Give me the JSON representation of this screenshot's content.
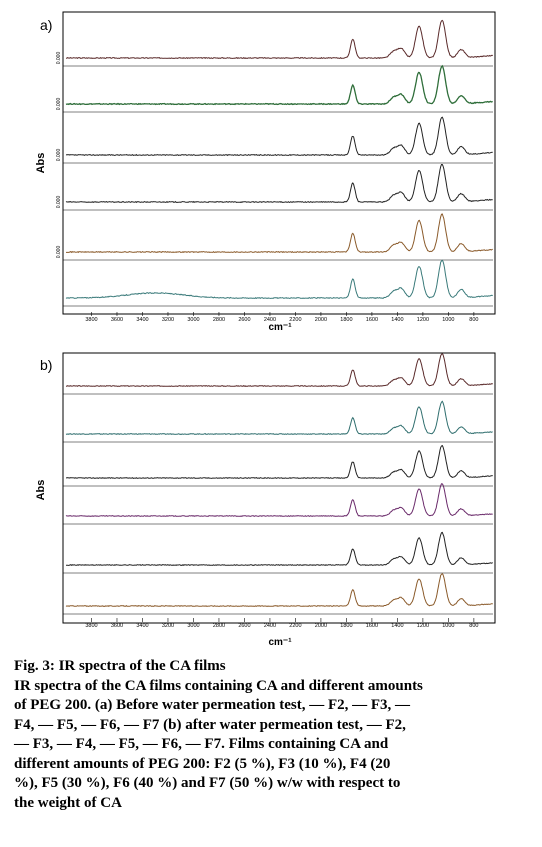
{
  "chart_data": [
    {
      "type": "line",
      "panel_label": "a)",
      "ylabel": "Abs",
      "xlabel": "cm⁻¹",
      "x_ticks": [
        "3800",
        "3600",
        "3400",
        "3200",
        "3000",
        "2800",
        "2600",
        "2400",
        "2200",
        "2000",
        "1800",
        "1600",
        "1400",
        "1200",
        "1000",
        "800"
      ],
      "xlim": [
        4000,
        650
      ],
      "stack_tick_labels": [
        "0.000",
        "0.000",
        "0.000",
        "0.000",
        "0.000"
      ],
      "series": [
        {
          "color": "#5a2a2a"
        },
        {
          "color": "#2f6e3a"
        },
        {
          "color": "#222222"
        },
        {
          "color": "#222222"
        },
        {
          "color": "#8a5a2a"
        },
        {
          "color": "#3a7a7a"
        }
      ],
      "peaks_cm1": [
        1750,
        1430,
        1370,
        1230,
        1050,
        900
      ],
      "peak_heights": [
        0.45,
        0.15,
        0.22,
        0.75,
        0.9,
        0.2
      ]
    },
    {
      "type": "line",
      "panel_label": "b)",
      "ylabel": "Abs",
      "xlabel": "cm⁻¹",
      "x_ticks": [
        "3800",
        "3600",
        "3400",
        "3200",
        "3000",
        "2800",
        "2600",
        "2400",
        "2200",
        "2000",
        "1800",
        "1600",
        "1400",
        "1200",
        "1000",
        "800"
      ],
      "xlim": [
        4000,
        650
      ],
      "series": [
        {
          "color": "#5a2a2a"
        },
        {
          "color": "#2f6e6e"
        },
        {
          "color": "#222222"
        },
        {
          "color": "#6a2a6a"
        },
        {
          "color": "#222222"
        },
        {
          "color": "#8a5a2a"
        }
      ],
      "peaks_cm1": [
        1750,
        1430,
        1370,
        1230,
        1050,
        900
      ],
      "peak_heights": [
        0.45,
        0.15,
        0.22,
        0.75,
        0.9,
        0.2
      ]
    }
  ],
  "caption": {
    "title": "Fig. 3: IR spectra of the CA films",
    "lines": [
      "IR spectra of the CA films containing CA and different amounts",
      "of PEG 200. (a) Before water permeation test, — F2, — F3, —",
      "F4, — F5, — F6, — F7 (b) after water permeation test, — F2,",
      "— F3, — F4, — F5, — F6, — F7. Films containing CA and",
      "different amounts of PEG 200:  F2 (5 %), F3 (10 %), F4 (20",
      "%), F5 (30 %), F6 (40 %) and F7 (50 %) w/w with respect to",
      "the weight of CA"
    ]
  }
}
